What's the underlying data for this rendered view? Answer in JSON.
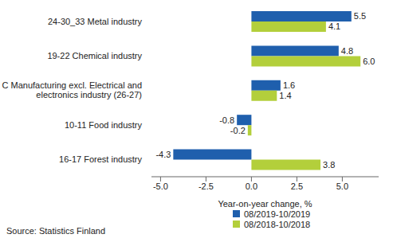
{
  "chart_data": {
    "type": "bar",
    "orientation": "horizontal",
    "categories": [
      "24-30_33 Metal industry",
      "19-22 Chemical industry",
      "C Manufacturing excl. Electrical and electronics industry (26-27)",
      "10-11 Food industry",
      "16-17 Forest industry"
    ],
    "series": [
      {
        "name": "08/2019-10/2019",
        "color": "#1f5fad",
        "values": [
          5.5,
          4.8,
          1.6,
          -0.8,
          -4.3
        ],
        "value_labels": [
          "5.5",
          "4.8",
          "1.6",
          "-0.8",
          "-4.3"
        ]
      },
      {
        "name": "08/2018-10/2018",
        "color": "#b3cf3b",
        "values": [
          4.1,
          6.0,
          1.4,
          -0.2,
          3.8
        ],
        "value_labels": [
          "4.1",
          "6.0",
          "1.4",
          "-0.2",
          "3.8"
        ]
      }
    ],
    "xlabel": "Year-on-year change, %",
    "xlim": [
      -5.5,
      7
    ],
    "xticks": [
      {
        "value": -5,
        "label": "-5.0"
      },
      -2.5,
      {
        "value": 0,
        "label": "0.0"
      },
      2.5,
      {
        "value": 5,
        "label": "5.0"
      }
    ],
    "grid": false,
    "data_labels": true,
    "legend": "bottom right",
    "source": "Source: Statistics Finland"
  }
}
